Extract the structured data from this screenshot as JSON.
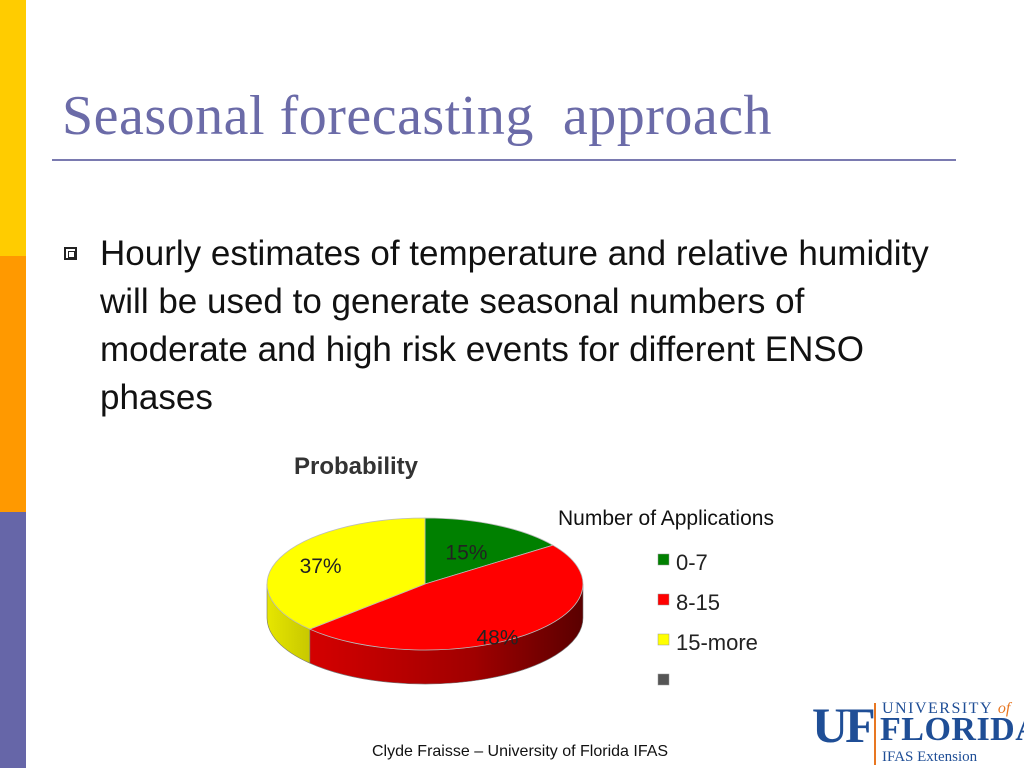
{
  "slide": {
    "title": "Seasonal forecasting  approach",
    "bullet": "Hourly estimates of temperature and relative humidity will be used to generate seasonal numbers of moderate and high risk events for different ENSO phases",
    "footer": "Clyde Fraisse – University of Florida IFAS"
  },
  "theme": {
    "sidebar_colors": [
      "#FFCC00",
      "#FF9900",
      "#6666A8"
    ],
    "title_color": "#6B6BA8"
  },
  "logo": {
    "initials": "UF",
    "university": "UNIVERSITY",
    "of": "of",
    "state": "FLORIDA",
    "unit": "IFAS Extension"
  },
  "chart_data": {
    "type": "pie",
    "title": "Probability",
    "legend_title": "Number of Applications",
    "legend_position": "right",
    "categories": [
      "0-7",
      "8-15",
      "15-more",
      ""
    ],
    "values": [
      15,
      48,
      37
    ],
    "labels": [
      "15%",
      "48%",
      "37%"
    ],
    "colors": [
      "#008000",
      "#FF0000",
      "#FFFF00",
      "#555555"
    ]
  }
}
